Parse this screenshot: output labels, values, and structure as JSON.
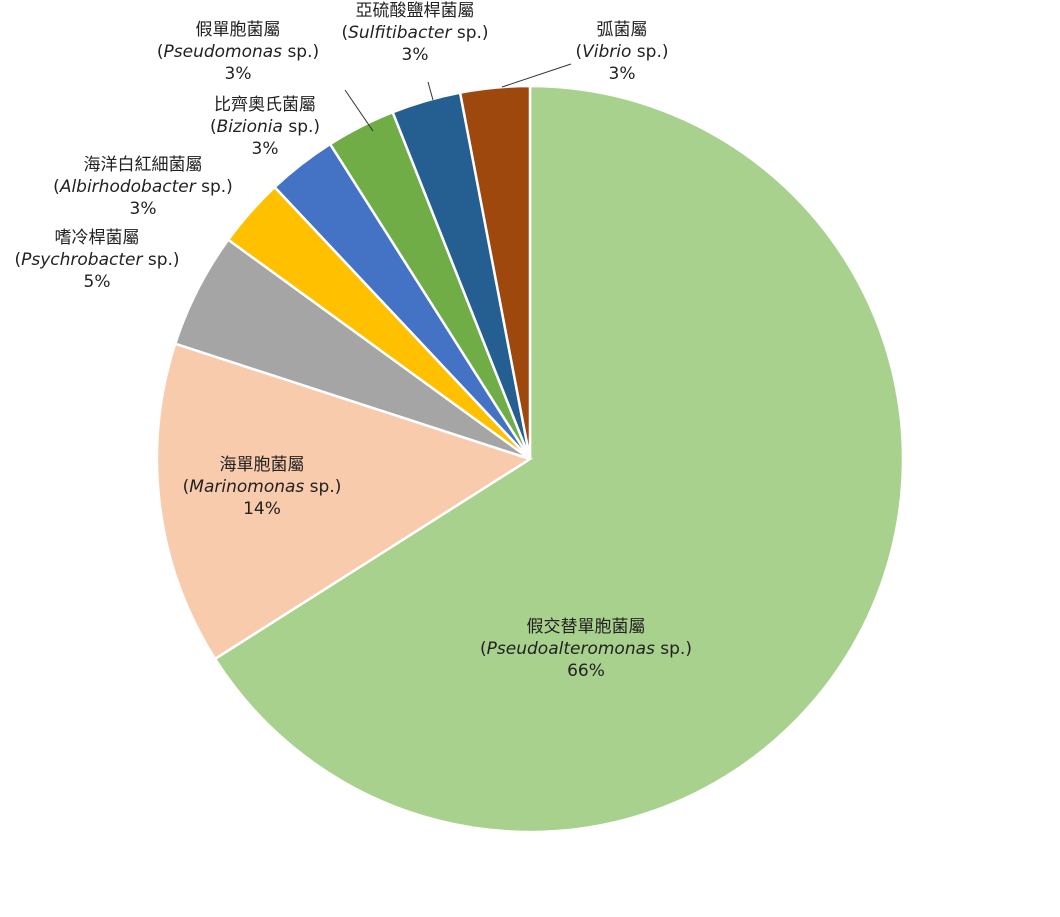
{
  "chart_data": {
    "type": "pie",
    "title": "",
    "start_angle_deg": 0,
    "direction": "clockwise",
    "slices": [
      {
        "name_zh": "假交替單胞菌屬",
        "name_latin": "Pseudoalteromonas",
        "suffix": " sp.)",
        "value": 66,
        "label": "66%",
        "color": "#a9d18e"
      },
      {
        "name_zh": "海單胞菌屬",
        "name_latin": "Marinomonas",
        "suffix": " sp.)",
        "value": 14,
        "label": "14%",
        "color": "#f8cbad"
      },
      {
        "name_zh": "嗜冷桿菌屬",
        "name_latin": "Psychrobacter",
        "suffix": " sp.)",
        "value": 5,
        "label": "5%",
        "color": "#a5a5a5"
      },
      {
        "name_zh": "海洋白紅細菌屬",
        "name_latin": "Albirhodobacter",
        "suffix": " sp.)",
        "value": 3,
        "label": "3%",
        "color": "#ffc000"
      },
      {
        "name_zh": "比齊奧氏菌屬",
        "name_latin": "Bizionia",
        "suffix": " sp.)",
        "value": 3,
        "label": "3%",
        "color": "#4472c4"
      },
      {
        "name_zh": "假單胞菌屬",
        "name_latin": "Pseudomonas",
        "suffix": " sp.)",
        "value": 3,
        "label": "3%",
        "color": "#70ad47"
      },
      {
        "name_zh": "亞硫酸鹽桿菌屬",
        "name_latin": "Sulfitibacter",
        "suffix": " sp.)",
        "value": 3,
        "label": "3%",
        "color": "#255e91"
      },
      {
        "name_zh": "弧菌屬",
        "name_latin": "Vibrio",
        "suffix": " sp.)",
        "value": 3,
        "label": "3%",
        "color": "#9e480e"
      }
    ]
  }
}
